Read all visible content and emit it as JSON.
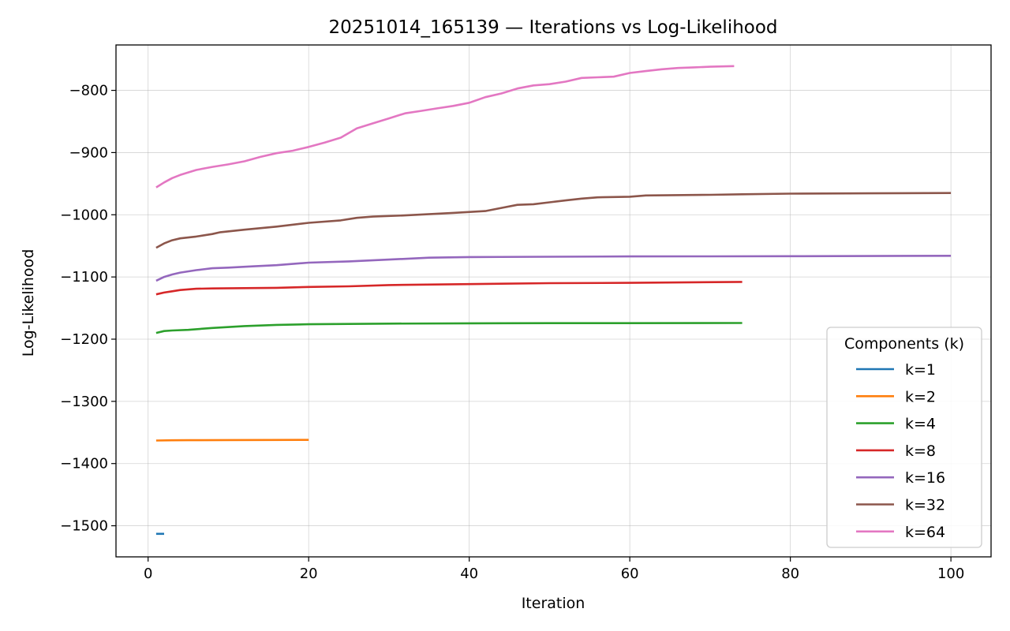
{
  "chart_data": {
    "type": "line",
    "title": "20251014_165139 — Iterations vs Log-Likelihood",
    "xlabel": "Iteration",
    "ylabel": "Log-Likelihood",
    "xlim": [
      -4,
      105
    ],
    "ylim": [
      -1550,
      -727
    ],
    "xticks": [
      0,
      20,
      40,
      60,
      80,
      100
    ],
    "yticks": [
      -1500,
      -1400,
      -1300,
      -1200,
      -1100,
      -1000,
      -900,
      -800
    ],
    "grid": true,
    "legend": {
      "title": "Components (k)",
      "placement": "lower-right"
    },
    "series": [
      {
        "name": "k=1",
        "color": "#1f77b4",
        "x": [
          1,
          2
        ],
        "y": [
          -1513,
          -1513
        ]
      },
      {
        "name": "k=2",
        "color": "#ff7f0e",
        "x": [
          1,
          3,
          5,
          10,
          15,
          20
        ],
        "y": [
          -1363,
          -1362.6,
          -1362.4,
          -1362.2,
          -1362.1,
          -1362
        ]
      },
      {
        "name": "k=4",
        "color": "#2ca02c",
        "x": [
          1,
          2,
          3,
          5,
          8,
          12,
          16,
          20,
          30,
          40,
          50,
          60,
          74
        ],
        "y": [
          -1190,
          -1187,
          -1186,
          -1185,
          -1182,
          -1179,
          -1177,
          -1176,
          -1175,
          -1174.5,
          -1174.3,
          -1174.2,
          -1174
        ]
      },
      {
        "name": "k=8",
        "color": "#d62728",
        "x": [
          1,
          2,
          3,
          4,
          6,
          8,
          12,
          16,
          20,
          25,
          30,
          40,
          50,
          60,
          74
        ],
        "y": [
          -1128,
          -1125,
          -1123,
          -1121,
          -1119,
          -1118.5,
          -1118,
          -1117.5,
          -1116,
          -1115,
          -1113,
          -1111.5,
          -1110,
          -1109.5,
          -1108
        ]
      },
      {
        "name": "k=16",
        "color": "#9467bd",
        "x": [
          1,
          2,
          3,
          4,
          6,
          8,
          10,
          13,
          16,
          20,
          25,
          30,
          35,
          40,
          50,
          60,
          70,
          80,
          90,
          100
        ],
        "y": [
          -1106,
          -1100,
          -1096,
          -1093,
          -1089,
          -1086,
          -1085,
          -1083,
          -1081,
          -1077,
          -1075,
          -1072,
          -1069,
          -1068,
          -1067.5,
          -1067,
          -1066.8,
          -1066.6,
          -1066.4,
          -1066
        ]
      },
      {
        "name": "k=32",
        "color": "#8c564b",
        "x": [
          1,
          2,
          3,
          4,
          6,
          8,
          9,
          12,
          16,
          20,
          24,
          26,
          28,
          32,
          38,
          42,
          44,
          46,
          48,
          50,
          52,
          54,
          56,
          60,
          62,
          70,
          74,
          80,
          90,
          100
        ],
        "y": [
          -1053,
          -1046,
          -1041,
          -1038,
          -1035,
          -1031,
          -1028,
          -1024,
          -1019,
          -1013,
          -1009,
          -1005,
          -1003,
          -1001,
          -997,
          -994,
          -989,
          -984,
          -983,
          -980,
          -977,
          -974,
          -972,
          -971,
          -969,
          -968,
          -967,
          -966,
          -965.5,
          -965
        ]
      },
      {
        "name": "k=64",
        "color": "#e377c2",
        "x": [
          1,
          2,
          3,
          4,
          6,
          8,
          10,
          12,
          14,
          16,
          18,
          20,
          22,
          24,
          26,
          28,
          30,
          32,
          34,
          36,
          38,
          40,
          42,
          44,
          46,
          48,
          50,
          52,
          54,
          56,
          58,
          60,
          62,
          64,
          66,
          68,
          70,
          73
        ],
        "y": [
          -956,
          -948,
          -941,
          -936,
          -928,
          -923,
          -919,
          -914,
          -907,
          -901,
          -897,
          -891,
          -884,
          -876,
          -861,
          -853,
          -845,
          -837,
          -833,
          -829,
          -825,
          -820,
          -811,
          -805,
          -797,
          -792,
          -790,
          -786,
          -780,
          -779,
          -778,
          -772,
          -769,
          -766,
          -764,
          -763,
          -762,
          -761
        ]
      }
    ]
  }
}
